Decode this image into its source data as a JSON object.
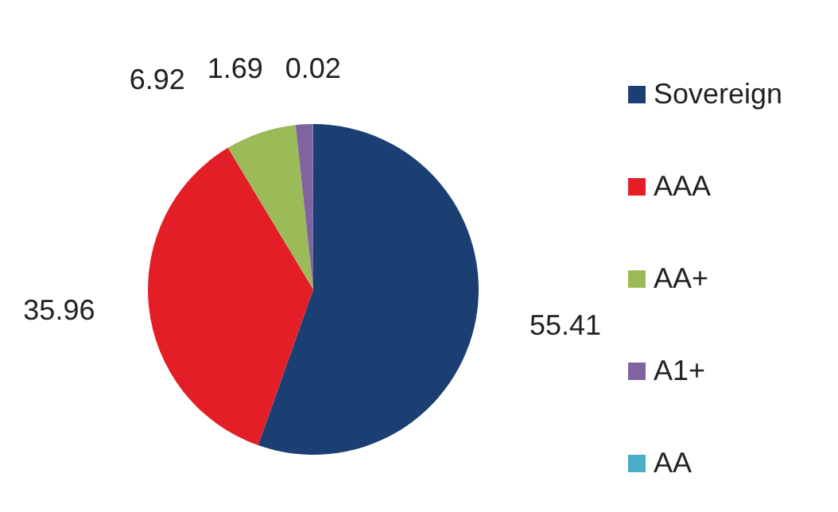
{
  "chart_data": {
    "type": "pie",
    "categories": [
      "Sovereign",
      "AAA",
      "AA+",
      "A1+",
      "AA"
    ],
    "values": [
      55.41,
      35.96,
      6.92,
      1.69,
      0.02
    ],
    "colors": [
      "#1b3f73",
      "#e31e26",
      "#9bbb59",
      "#8064a2",
      "#4bacc6"
    ],
    "data_labels": true,
    "legend": "right"
  }
}
